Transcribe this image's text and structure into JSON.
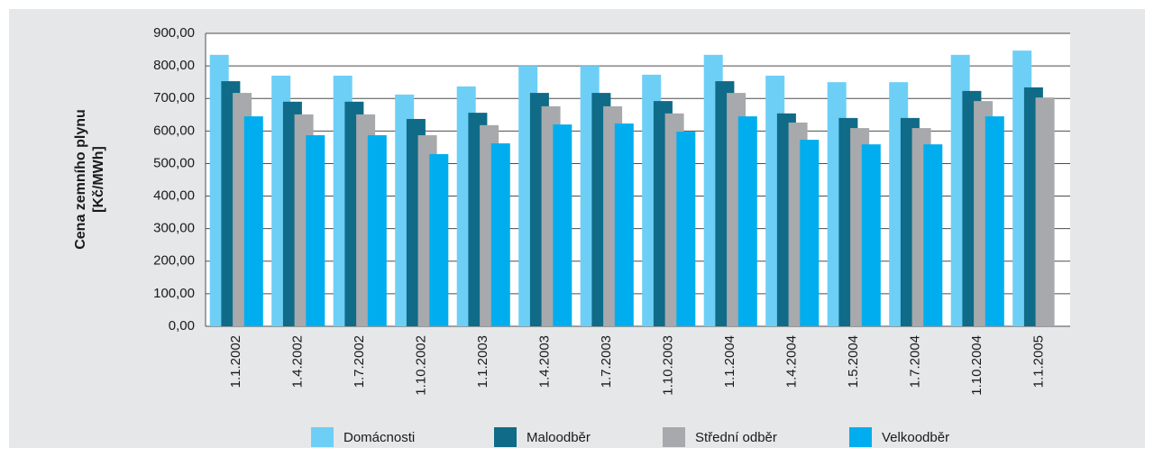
{
  "chart_data": {
    "type": "bar",
    "y_label": [
      "Cena zemního plynu",
      "[Kč/MWh]"
    ],
    "categories": [
      "1.1.2002",
      "1.4.2002",
      "1.7.2002",
      "1.10.2002",
      "1.1.2003",
      "1.4.2003",
      "1.7.2003",
      "1.10.2003",
      "1.1.2004",
      "1.4.2004",
      "1.5.2004",
      "1.7.2004",
      "1.10.2004",
      "1.1.2005"
    ],
    "series": [
      {
        "name": "Domácnosti",
        "color": "#6dcff6",
        "values": [
          834,
          770,
          770,
          712,
          737,
          800,
          800,
          773,
          834,
          770,
          750,
          750,
          834,
          847
        ]
      },
      {
        "name": "Maloodběr",
        "color": "#0f6b87",
        "values": [
          753,
          690,
          690,
          637,
          656,
          717,
          717,
          692,
          753,
          654,
          640,
          640,
          723,
          734
        ]
      },
      {
        "name": "Střední odběr",
        "color": "#a7a9ac",
        "values": [
          717,
          651,
          651,
          587,
          618,
          676,
          676,
          654,
          717,
          626,
          609,
          609,
          692,
          703
        ]
      },
      {
        "name": "Velkoodběr",
        "color": "#00aeef",
        "values": [
          645,
          587,
          587,
          529,
          562,
          620,
          623,
          598,
          645,
          573,
          559,
          559,
          645,
          null
        ]
      }
    ],
    "ylim": [
      0,
      900
    ],
    "yticks": [
      {
        "value": 0,
        "label": "0,00"
      },
      {
        "value": 100,
        "label": "100,00"
      },
      {
        "value": 200,
        "label": "200,00"
      },
      {
        "value": 300,
        "label": "300,00"
      },
      {
        "value": 400,
        "label": "400,00"
      },
      {
        "value": 500,
        "label": "500,00"
      },
      {
        "value": 600,
        "label": "600,00"
      },
      {
        "value": 700,
        "label": "700,00"
      },
      {
        "value": 800,
        "label": "800,00"
      },
      {
        "value": 900,
        "label": "900,00"
      }
    ],
    "grid": true
  }
}
